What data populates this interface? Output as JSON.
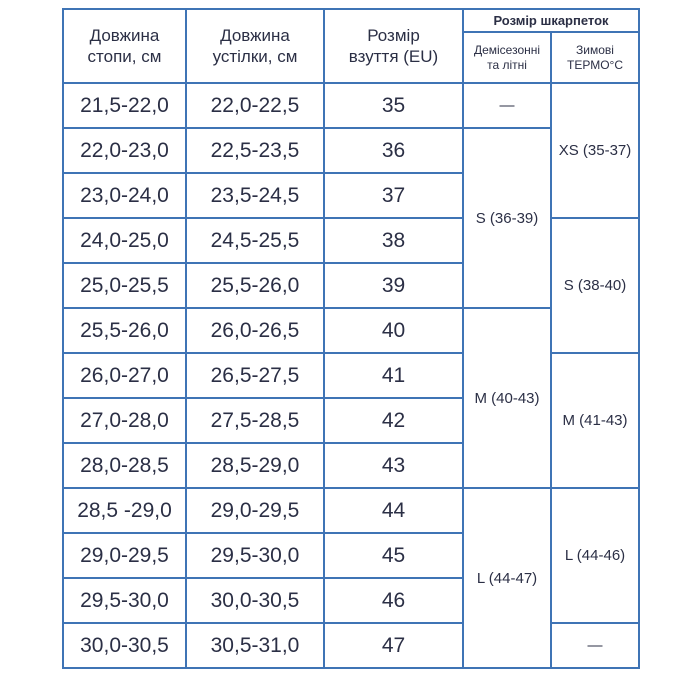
{
  "header": {
    "foot": [
      "Довжина",
      "стопи, см"
    ],
    "insole": [
      "Довжина",
      "устілки, см"
    ],
    "shoe": [
      "Розмір",
      "взуття (EU)"
    ],
    "socks": "Розмір шкарпеток",
    "demi": [
      "Демісезонні",
      "та літні"
    ],
    "winter": [
      "Зимові",
      "ТЕРМО°С"
    ]
  },
  "rows": [
    [
      "21,5-22,0",
      "22,0-22,5",
      "35",
      "—",
      "XS (35-37)"
    ],
    [
      "22,0-23,0",
      "22,5-23,5",
      "36",
      "S (36-39)"
    ],
    [
      "23,0-24,0",
      "23,5-24,5",
      "37"
    ],
    [
      "24,0-25,0",
      "24,5-25,5",
      "38",
      "S (38-40)"
    ],
    [
      "25,0-25,5",
      "25,5-26,0",
      "39"
    ],
    [
      "25,5-26,0",
      "26,0-26,5",
      "40",
      "M (40-43)"
    ],
    [
      "26,0-27,0",
      "26,5-27,5",
      "41",
      "M (41-43)"
    ],
    [
      "27,0-28,0",
      "27,5-28,5",
      "42"
    ],
    [
      "28,0-28,5",
      "28,5-29,0",
      "43"
    ],
    [
      "28,5 -29,0",
      "29,0-29,5",
      "44",
      "L (44-47)",
      "L (44-46)"
    ],
    [
      "29,0-29,5",
      "29,5-30,0",
      "45"
    ],
    [
      "29,5-30,0",
      "30,0-30,5",
      "46"
    ],
    [
      "30,0-30,5",
      "30,5-31,0",
      "47",
      "—"
    ]
  ]
}
